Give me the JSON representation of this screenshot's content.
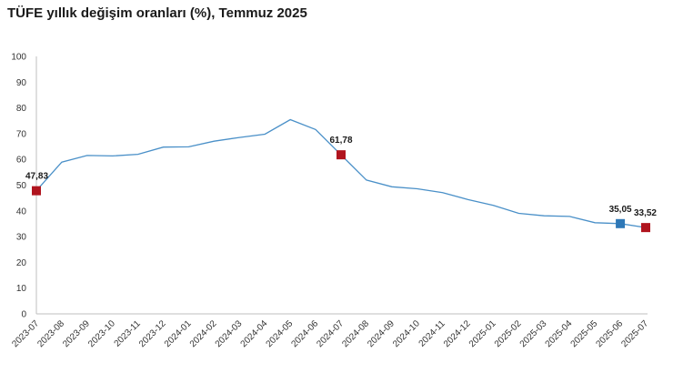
{
  "chart_data": {
    "type": "line",
    "title": "TÜFE yıllık değişim oranları (%), Temmuz 2025",
    "xlabel": "",
    "ylabel": "",
    "ylim": [
      0,
      100
    ],
    "yticks": [
      0,
      10,
      20,
      30,
      40,
      50,
      60,
      70,
      80,
      90,
      100
    ],
    "grid": false,
    "categories": [
      "2023-07",
      "2023-08",
      "2023-09",
      "2023-10",
      "2023-11",
      "2023-12",
      "2024-01",
      "2024-02",
      "2024-03",
      "2024-04",
      "2024-05",
      "2024-06",
      "2024-07",
      "2024-08",
      "2024-09",
      "2024-10",
      "2024-11",
      "2024-12",
      "2025-01",
      "2025-02",
      "2025-03",
      "2025-04",
      "2025-05",
      "2025-06",
      "2025-07"
    ],
    "series": [
      {
        "color": "#4a90c8",
        "values": [
          47.83,
          58.94,
          61.53,
          61.36,
          61.98,
          64.77,
          64.86,
          67.07,
          68.5,
          69.8,
          75.45,
          71.6,
          61.78,
          51.97,
          49.38,
          48.58,
          47.09,
          44.38,
          42.12,
          39.05,
          38.1,
          37.86,
          35.41,
          35.05,
          33.52
        ]
      }
    ],
    "highlights": [
      {
        "index": 0,
        "label": "47,83",
        "color": "#b0141e"
      },
      {
        "index": 12,
        "label": "61,78",
        "color": "#b0141e"
      },
      {
        "index": 23,
        "label": "35,05",
        "color": "#2e78b7"
      },
      {
        "index": 24,
        "label": "33,52",
        "color": "#b0141e"
      }
    ]
  }
}
